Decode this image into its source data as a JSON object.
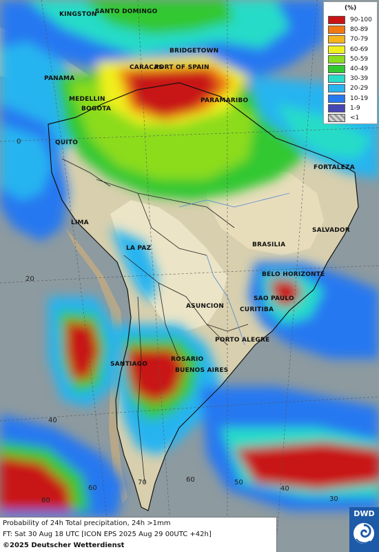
{
  "legend": {
    "title": "(%)",
    "items": [
      {
        "label": "90-100",
        "color": "#c81414"
      },
      {
        "label": "80-89",
        "color": "#f07814"
      },
      {
        "label": "70-79",
        "color": "#f4b41e"
      },
      {
        "label": "60-69",
        "color": "#f0f01e"
      },
      {
        "label": "50-59",
        "color": "#8cdc1e"
      },
      {
        "label": "40-49",
        "color": "#32c832"
      },
      {
        "label": "30-39",
        "color": "#28dcc8"
      },
      {
        "label": "20-29",
        "color": "#28b4f0"
      },
      {
        "label": "10-19",
        "color": "#2878f0"
      },
      {
        "label": "1-9",
        "color": "#4646b4"
      },
      {
        "label": "<1",
        "color": "#b4b4b4"
      }
    ]
  },
  "cities": [
    {
      "name": "KINGSTON"
    },
    {
      "name": "SANTO DOMINGO"
    },
    {
      "name": "BRIDGETOWN"
    },
    {
      "name": "CARACAS"
    },
    {
      "name": "PORT OF SPAIN"
    },
    {
      "name": "PANAMA"
    },
    {
      "name": "MEDELLIN"
    },
    {
      "name": "BOGOTA"
    },
    {
      "name": "PARAMARIBO"
    },
    {
      "name": "QUITO"
    },
    {
      "name": "FORTALEZA"
    },
    {
      "name": "LIMA"
    },
    {
      "name": "SALVADOR"
    },
    {
      "name": "LA PAZ"
    },
    {
      "name": "BRASILIA"
    },
    {
      "name": "BELO HORIZONTE"
    },
    {
      "name": "SAO PAULO"
    },
    {
      "name": "ASUNCION"
    },
    {
      "name": "CURITIBA"
    },
    {
      "name": "PORTO ALEGRE"
    },
    {
      "name": "ROSARIO"
    },
    {
      "name": "SANTIAGO"
    },
    {
      "name": "BUENOS AIRES"
    }
  ],
  "grid_labels": [
    "0",
    "20",
    "40",
    "80",
    "60",
    "70",
    "60",
    "50",
    "40",
    "30"
  ],
  "footer": {
    "line1": "Probability of 24h Total precipitation, 24h >1mm",
    "line2": "FT: Sat 30 Aug 18 UTC [ICON EPS 2025 Aug 29 00UTC +42h]",
    "line3": "©2025 Deutscher Wetterdienst"
  },
  "logo": {
    "text": "DWD"
  }
}
